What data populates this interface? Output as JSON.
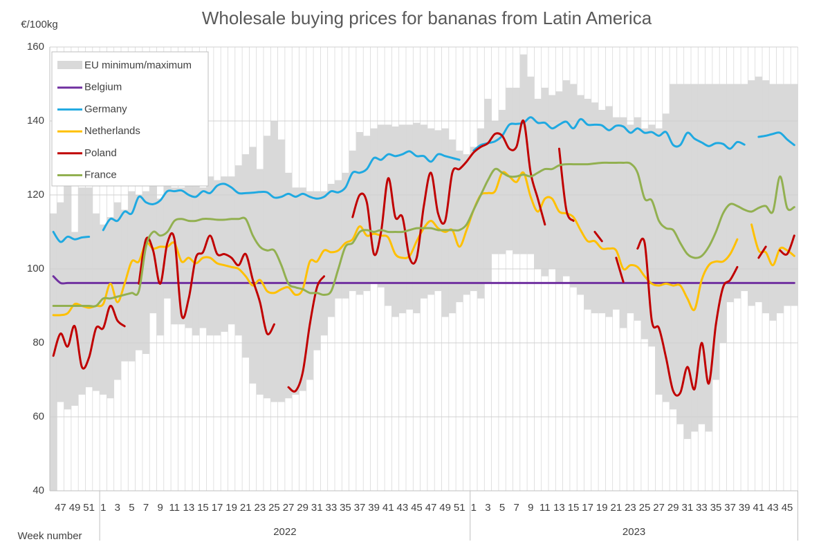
{
  "chart_data": {
    "type": "line",
    "title": "Wholesale buying prices for bananas from Latin America",
    "ylabel": "€/100kg",
    "xlabel": "Week number",
    "year_labels": [
      "2022",
      "2023"
    ],
    "categories": [
      null,
      "47",
      null,
      "49",
      null,
      "51",
      null,
      "1",
      null,
      "3",
      null,
      "5",
      null,
      "7",
      null,
      "9",
      null,
      "11",
      null,
      "13",
      null,
      "15",
      null,
      "17",
      null,
      "19",
      null,
      "21",
      null,
      "23",
      null,
      "25",
      null,
      "27",
      null,
      "29",
      null,
      "31",
      null,
      "33",
      null,
      "35",
      null,
      "37",
      null,
      "39",
      null,
      "41",
      null,
      "43",
      null,
      "45",
      null,
      "47",
      null,
      "49",
      null,
      "51",
      null,
      "1",
      null,
      "3",
      null,
      "5",
      null,
      "7",
      null,
      "9",
      null,
      "11",
      null,
      "13",
      null,
      "15",
      null,
      "17",
      null,
      "19",
      null,
      "21",
      null,
      "23",
      null,
      "25",
      null,
      "27",
      null,
      "29",
      null,
      "31",
      null,
      "33",
      null,
      "35",
      null,
      "37",
      null,
      "39",
      null,
      "41",
      null,
      "43",
      null,
      "45",
      null
    ],
    "ylim": [
      40,
      160
    ],
    "yticks": [
      40,
      60,
      80,
      100,
      120,
      140,
      160
    ],
    "grid": true,
    "legend": "upper left",
    "band": {
      "name": "EU minimum/maximum",
      "color": "#d9d9d9",
      "low": [
        40,
        64,
        62,
        63,
        66,
        68,
        67,
        66,
        65,
        70,
        75,
        75,
        78,
        77,
        88,
        82,
        92,
        85,
        85,
        84,
        82,
        84,
        82,
        82,
        83,
        85,
        82,
        76,
        69,
        66,
        65,
        64,
        64,
        65,
        66,
        67,
        70,
        78,
        82,
        87,
        92,
        92,
        94,
        93,
        94,
        96,
        95,
        90,
        87,
        88,
        89,
        88,
        92,
        93,
        94,
        87,
        88,
        91,
        93,
        94,
        92,
        96,
        104,
        104,
        105,
        104,
        104,
        104,
        100,
        98,
        100,
        96,
        98,
        95,
        93,
        89,
        88,
        88,
        87,
        89,
        84,
        88,
        86,
        81,
        79,
        66,
        64,
        62,
        58,
        54,
        56,
        58,
        56,
        70,
        80,
        91,
        92,
        94,
        90,
        91,
        88,
        86,
        88,
        90,
        90
      ],
      "high": [
        115,
        118,
        123,
        110,
        122,
        122,
        115,
        112,
        114,
        118,
        116,
        121,
        120,
        121,
        123,
        119,
        124,
        122,
        122,
        125,
        123,
        122,
        125,
        124,
        125,
        125,
        128,
        131,
        133,
        127,
        136,
        140,
        135,
        126,
        122,
        122,
        121,
        121,
        121,
        123,
        124,
        126,
        132,
        137,
        136,
        138,
        139,
        139,
        138.5,
        139,
        139,
        139.5,
        139,
        138,
        137.5,
        138,
        135,
        132,
        131,
        133,
        138,
        146,
        140,
        143,
        149,
        149,
        158,
        152,
        146,
        149,
        147,
        148,
        151,
        150,
        147,
        146,
        145,
        143,
        144,
        141,
        141,
        139,
        141,
        138,
        139,
        138,
        142,
        150,
        150,
        150,
        150,
        150,
        150,
        150,
        150,
        150,
        150,
        150,
        151,
        152,
        151,
        150,
        150,
        150,
        150
      ]
    },
    "series": [
      {
        "name": "Belgium",
        "color": "#7030a0",
        "values": [
          98,
          96.2,
          96.2,
          96.2,
          96.2,
          96.2,
          96.2,
          96.2,
          96.2,
          96.2,
          96.2,
          96.2,
          96.2,
          96.2,
          96.2,
          96.2,
          96.2,
          96.2,
          96.2,
          96.2,
          96.2,
          96.2,
          96.2,
          96.2,
          96.2,
          96.2,
          96.2,
          96.2,
          96.2,
          96.2,
          96.2,
          96.2,
          96.2,
          96.2,
          96.2,
          96.2,
          96.2,
          96.2,
          96.2,
          96.2,
          96.2,
          96.2,
          96.2,
          96.2,
          96.2,
          96.2,
          96.2,
          96.2,
          96.2,
          96.2,
          96.2,
          96.2,
          96.2,
          96.2,
          96.2,
          96.2,
          96.2,
          96.2,
          96.2,
          96.2,
          96.2,
          96.2,
          96.2,
          96.2,
          96.2,
          96.2,
          96.2,
          96.2,
          96.2,
          96.2,
          96.2,
          96.2,
          96.2,
          96.2,
          96.2,
          96.2,
          96.2,
          96.2,
          96.2,
          96.2,
          96.2,
          96.2,
          96.2,
          96.2,
          96.2,
          96.2,
          96.2,
          96.2,
          96.2,
          96.2,
          96.2,
          96.2,
          96.2,
          96.2,
          96.2,
          96.2,
          96.2,
          96.2,
          96.2,
          96.2,
          96.2,
          96.2,
          96.2,
          96.2,
          96.2
        ]
      },
      {
        "name": "Germany",
        "color": "#1fa9e1",
        "values": [
          110,
          107.3,
          108.7,
          108,
          108.5,
          108.7,
          null,
          110.5,
          113.5,
          113,
          115.5,
          115,
          119.5,
          118,
          117.5,
          118.5,
          121,
          121,
          121.2,
          120,
          119.5,
          121,
          120.5,
          122.5,
          123,
          122,
          120.5,
          120.5,
          120.6,
          120.8,
          120.7,
          119.3,
          119.5,
          120.3,
          119.5,
          120.3,
          119.5,
          119,
          119.5,
          121,
          120.7,
          122,
          126,
          126,
          127,
          130,
          129.5,
          131,
          130.5,
          131,
          131.8,
          130.5,
          130.5,
          129,
          131,
          130.5,
          130,
          129.5,
          null,
          132,
          133.5,
          134,
          134.5,
          136,
          139,
          139.2,
          139.5,
          141,
          139.5,
          139.5,
          138,
          139,
          139.8,
          138,
          140.5,
          139,
          139,
          138.8,
          137.5,
          138.7,
          138.5,
          136.8,
          138,
          136.8,
          137,
          136,
          137,
          133.5,
          133.5,
          136.8,
          135.2,
          134.2,
          133.2,
          134,
          133.8,
          132.5,
          134.3,
          133.6,
          null,
          135.7,
          136,
          136.5,
          136.8,
          135,
          133.5
        ]
      },
      {
        "name": "Netherlands",
        "color": "#ffc000",
        "values": [
          87.5,
          87.5,
          88,
          90.5,
          90,
          89.5,
          90,
          90.5,
          96,
          91,
          96,
          102,
          102,
          107,
          105.5,
          106,
          106,
          107,
          102,
          103,
          101.5,
          103,
          103,
          101.5,
          101,
          100.5,
          100,
          98,
          95.5,
          97,
          94,
          93.5,
          94.5,
          95,
          93,
          94.5,
          102,
          102,
          105,
          104.5,
          105,
          107,
          108,
          111.5,
          109,
          109.5,
          109,
          108.5,
          104,
          103,
          103.5,
          107.5,
          111,
          113,
          111,
          110,
          110.5,
          106,
          110.5,
          116,
          120,
          120.5,
          121,
          126,
          125,
          123.5,
          126,
          119.5,
          115.5,
          119,
          119,
          115.5,
          115,
          114,
          110.5,
          107.5,
          107.5,
          105.5,
          105.5,
          105,
          100,
          101,
          100.5,
          98,
          96,
          95.5,
          96,
          95.5,
          95.5,
          92,
          89,
          97,
          101,
          102,
          102,
          104,
          108,
          null,
          112,
          105,
          104.5,
          101,
          105.5,
          105,
          103.5
        ]
      },
      {
        "name": "Poland",
        "color": "#c00000",
        "values": [
          76.5,
          82.5,
          79,
          84.5,
          73.5,
          76,
          84,
          84,
          90,
          86,
          84.5,
          null,
          96,
          108,
          105,
          96,
          107,
          108,
          87.5,
          92,
          103,
          104.5,
          109,
          104,
          104,
          103,
          101,
          104,
          97,
          91,
          82.5,
          85,
          null,
          68,
          67,
          72,
          85,
          95,
          98,
          null,
          null,
          null,
          114,
          120,
          118,
          104,
          110,
          124.5,
          114,
          114,
          103,
          103,
          117,
          126,
          115,
          113,
          126,
          127,
          129,
          131.5,
          133,
          134,
          136.5,
          136,
          132.5,
          133,
          140,
          126,
          119,
          112,
          null,
          132.5,
          116,
          113,
          null,
          null,
          110,
          107.5,
          null,
          103,
          96.5,
          null,
          105.5,
          107,
          86,
          84,
          76,
          67,
          66.5,
          73.5,
          67.5,
          80,
          69,
          85,
          95,
          97,
          100.5,
          null,
          null,
          103,
          106,
          null,
          105,
          104,
          109
        ]
      },
      {
        "name": "France",
        "color": "#92b050",
        "values": [
          90,
          90,
          90,
          90,
          90,
          90,
          90,
          92,
          92,
          92.5,
          93,
          93.5,
          94,
          106,
          110,
          109,
          110,
          113,
          113.5,
          113,
          113,
          113.5,
          113.5,
          113.3,
          113.3,
          113.5,
          113.5,
          113.5,
          109,
          106,
          105,
          105,
          101,
          96,
          95,
          94.5,
          93.5,
          93.5,
          93,
          94,
          100,
          106,
          107,
          110,
          110.5,
          110,
          110.5,
          110,
          110,
          110,
          110.5,
          111,
          111,
          111,
          110.5,
          110.5,
          110.5,
          110.5,
          112,
          116,
          120,
          124,
          127,
          126,
          125,
          125,
          125.5,
          125,
          126,
          127,
          127,
          128,
          128.3,
          128.3,
          128.3,
          128.3,
          128.5,
          128.7,
          128.7,
          128.7,
          128.7,
          128.5,
          126,
          119,
          118.5,
          113,
          111,
          110.5,
          107,
          104,
          103,
          103.5,
          106,
          110,
          115,
          117.5,
          117,
          116,
          115.5,
          116.5,
          117,
          115.5,
          125,
          116.5,
          116.7
        ]
      }
    ]
  }
}
